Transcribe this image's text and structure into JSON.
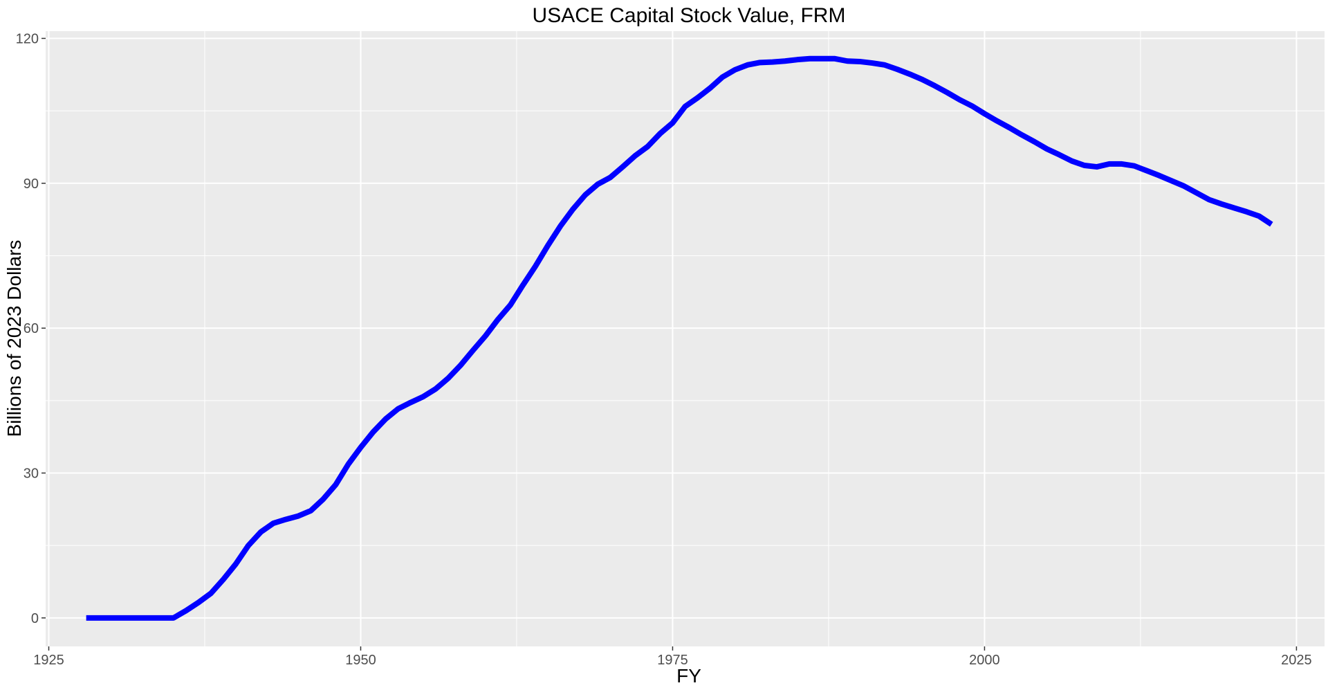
{
  "chart_data": {
    "type": "line",
    "title": "USACE Capital Stock Value, FRM",
    "xlabel": "FY",
    "ylabel": "Billions of 2023 Dollars",
    "xlim": [
      1924.75,
      1927.0,
      2027.25
    ],
    "ylim": [
      -5.9,
      121.5
    ],
    "x_ticks": [
      1925,
      1950,
      1975,
      2000,
      2025
    ],
    "y_ticks": [
      0,
      30,
      60,
      90,
      120
    ],
    "grid": true,
    "legend": "none",
    "line_color": "#0000ff",
    "panel_color": "#ebebeb",
    "series": [
      {
        "x": [
          1928,
          1929,
          1930,
          1931,
          1932,
          1933,
          1934,
          1935,
          1936,
          1937,
          1938,
          1939,
          1940,
          1941,
          1942,
          1943,
          1944,
          1945,
          1946,
          1947,
          1948,
          1949,
          1950,
          1951,
          1952,
          1953,
          1954,
          1955,
          1956,
          1957,
          1958,
          1959,
          1960,
          1961,
          1962,
          1963,
          1964,
          1965,
          1966,
          1967,
          1968,
          1969,
          1970,
          1971,
          1972,
          1973,
          1974,
          1975,
          1976,
          1977,
          1978,
          1979,
          1980,
          1981,
          1982,
          1983,
          1984,
          1985,
          1986,
          1987,
          1988,
          1989,
          1990,
          1991,
          1992,
          1993,
          1994,
          1995,
          1996,
          1997,
          1998,
          1999,
          2000,
          2001,
          2002,
          2003,
          2004,
          2005,
          2006,
          2007,
          2008,
          2009,
          2010,
          2011,
          2012,
          2013,
          2014,
          2015,
          2016,
          2017,
          2018,
          2019,
          2020,
          2021,
          2022,
          2023
        ],
        "values": [
          0,
          0,
          0,
          0,
          0,
          0,
          0,
          0,
          1.5,
          3.2,
          5.1,
          8.0,
          11.2,
          15.0,
          17.8,
          19.6,
          20.4,
          21.1,
          22.2,
          24.6,
          27.6,
          31.8,
          35.3,
          38.5,
          41.2,
          43.3,
          44.6,
          45.8,
          47.4,
          49.6,
          52.3,
          55.4,
          58.4,
          61.8,
          64.8,
          68.9,
          72.8,
          77.1,
          81.1,
          84.6,
          87.6,
          89.8,
          91.2,
          93.4,
          95.7,
          97.6,
          100.3,
          102.5,
          105.9,
          107.7,
          109.7,
          112.0,
          113.5,
          114.5,
          115.0,
          115.1,
          115.3,
          115.6,
          115.8,
          115.8,
          115.8,
          115.3,
          115.2,
          114.9,
          114.5,
          113.6,
          112.6,
          111.5,
          110.2,
          108.8,
          107.3,
          106.0,
          104.4,
          102.9,
          101.5,
          100.0,
          98.6,
          97.1,
          95.9,
          94.6,
          93.7,
          93.4,
          94.0,
          94.0,
          93.6,
          92.6,
          91.6,
          90.5,
          89.4,
          88.0,
          86.6,
          85.7,
          84.9,
          84.1,
          83.2,
          81.5
        ]
      }
    ]
  }
}
